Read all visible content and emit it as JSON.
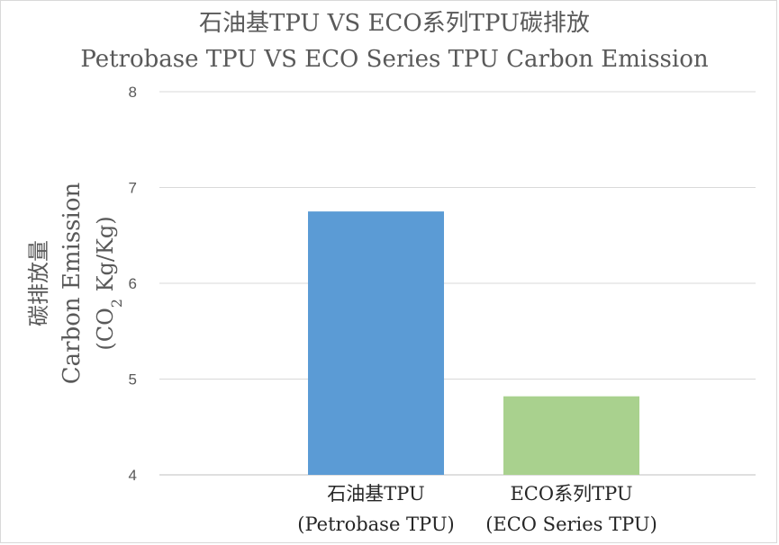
{
  "chart_data": {
    "type": "bar",
    "title": "石油基TPU VS ECO系列TPU碳排放",
    "subtitle": "Petrobase TPU VS ECO Series TPU Carbon Emission",
    "categories": [
      {
        "label_zh": "石油基TPU",
        "label_en": "(Petrobase TPU)"
      },
      {
        "label_zh": "ECO系列TPU",
        "label_en": "(ECO Series TPU)"
      }
    ],
    "values": [
      6.75,
      4.82
    ],
    "colors": [
      "#5b9bd5",
      "#a9d18e"
    ],
    "ylabel": {
      "zh": "碳排放量",
      "en": "Carbon Emission",
      "unit_prefix": "(CO",
      "unit_sub": "2",
      "unit_suffix": " Kg/Kg)"
    },
    "ylim": [
      4,
      8
    ],
    "yticks": [
      4,
      5,
      6,
      7,
      8
    ],
    "grid": true,
    "legend": "none"
  }
}
